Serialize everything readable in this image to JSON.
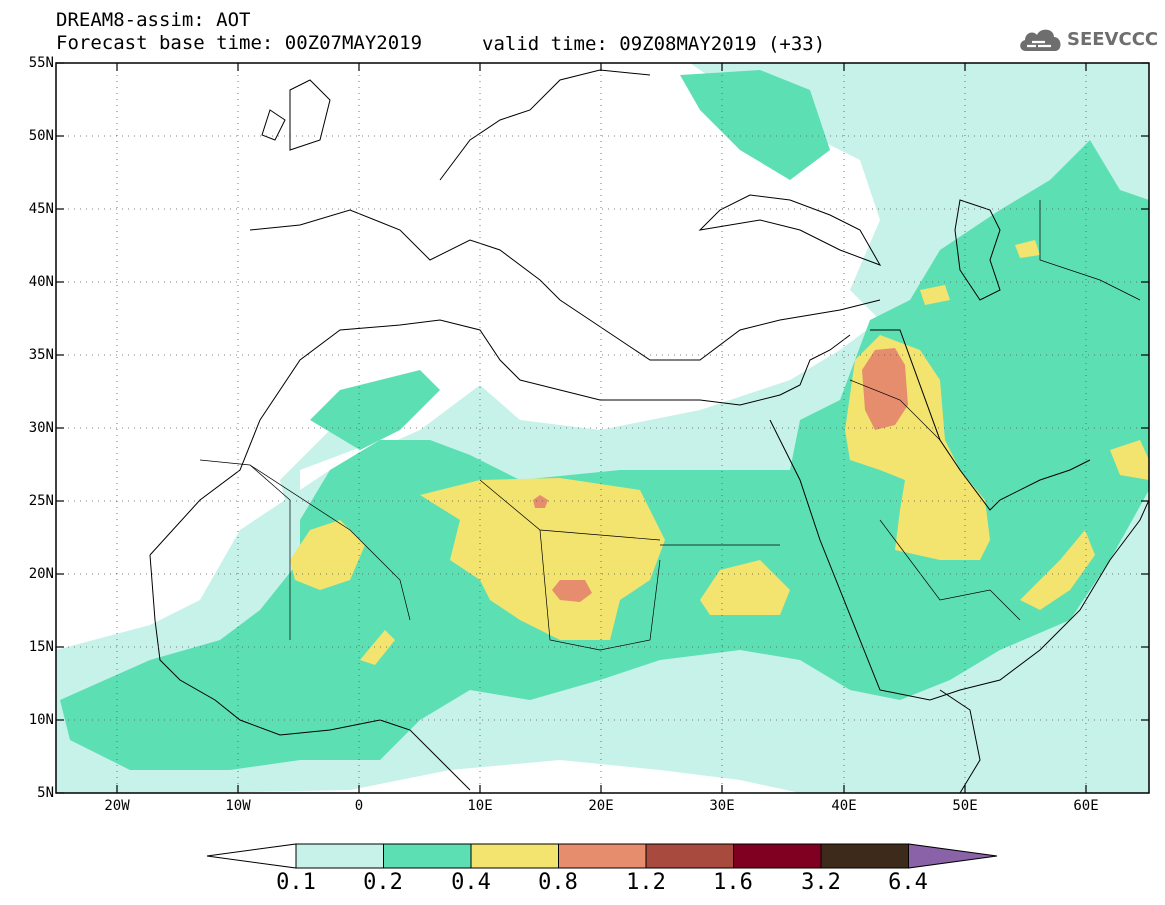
{
  "header": {
    "line1": "DREAM8-assim: AOT",
    "line2": "Forecast base time: 00Z07MAY2019",
    "line3": "valid time: 09Z08MAY2019 (+33)"
  },
  "logo": {
    "text": "SEEVCCC",
    "icon": "cloud-icon"
  },
  "map": {
    "lat_labels": [
      "55N",
      "50N",
      "45N",
      "40N",
      "35N",
      "30N",
      "25N",
      "20N",
      "15N",
      "10N",
      "5N"
    ],
    "lon_labels": [
      "20W",
      "10W",
      "0",
      "10E",
      "20E",
      "30E",
      "40E",
      "50E",
      "60E"
    ],
    "extent": {
      "lon_min": -25,
      "lon_max": 65,
      "lat_min": 5,
      "lat_max": 55
    },
    "grid": "dotted"
  },
  "legend": {
    "levels": [
      "0.1",
      "0.2",
      "0.4",
      "0.8",
      "1.2",
      "1.6",
      "3.2",
      "6.4"
    ],
    "colors": {
      "below_0.1": "#ffffff",
      "0.1-0.2": "#c6f2e9",
      "0.2-0.4": "#5ddfb4",
      "0.4-0.8": "#f2e46e",
      "0.8-1.2": "#e68d6e",
      "1.2-1.6": "#a84a3e",
      "1.6-3.2": "#800022",
      "3.2-6.4": "#3e2a1a",
      "above_6.4": "#8a62a8"
    }
  }
}
